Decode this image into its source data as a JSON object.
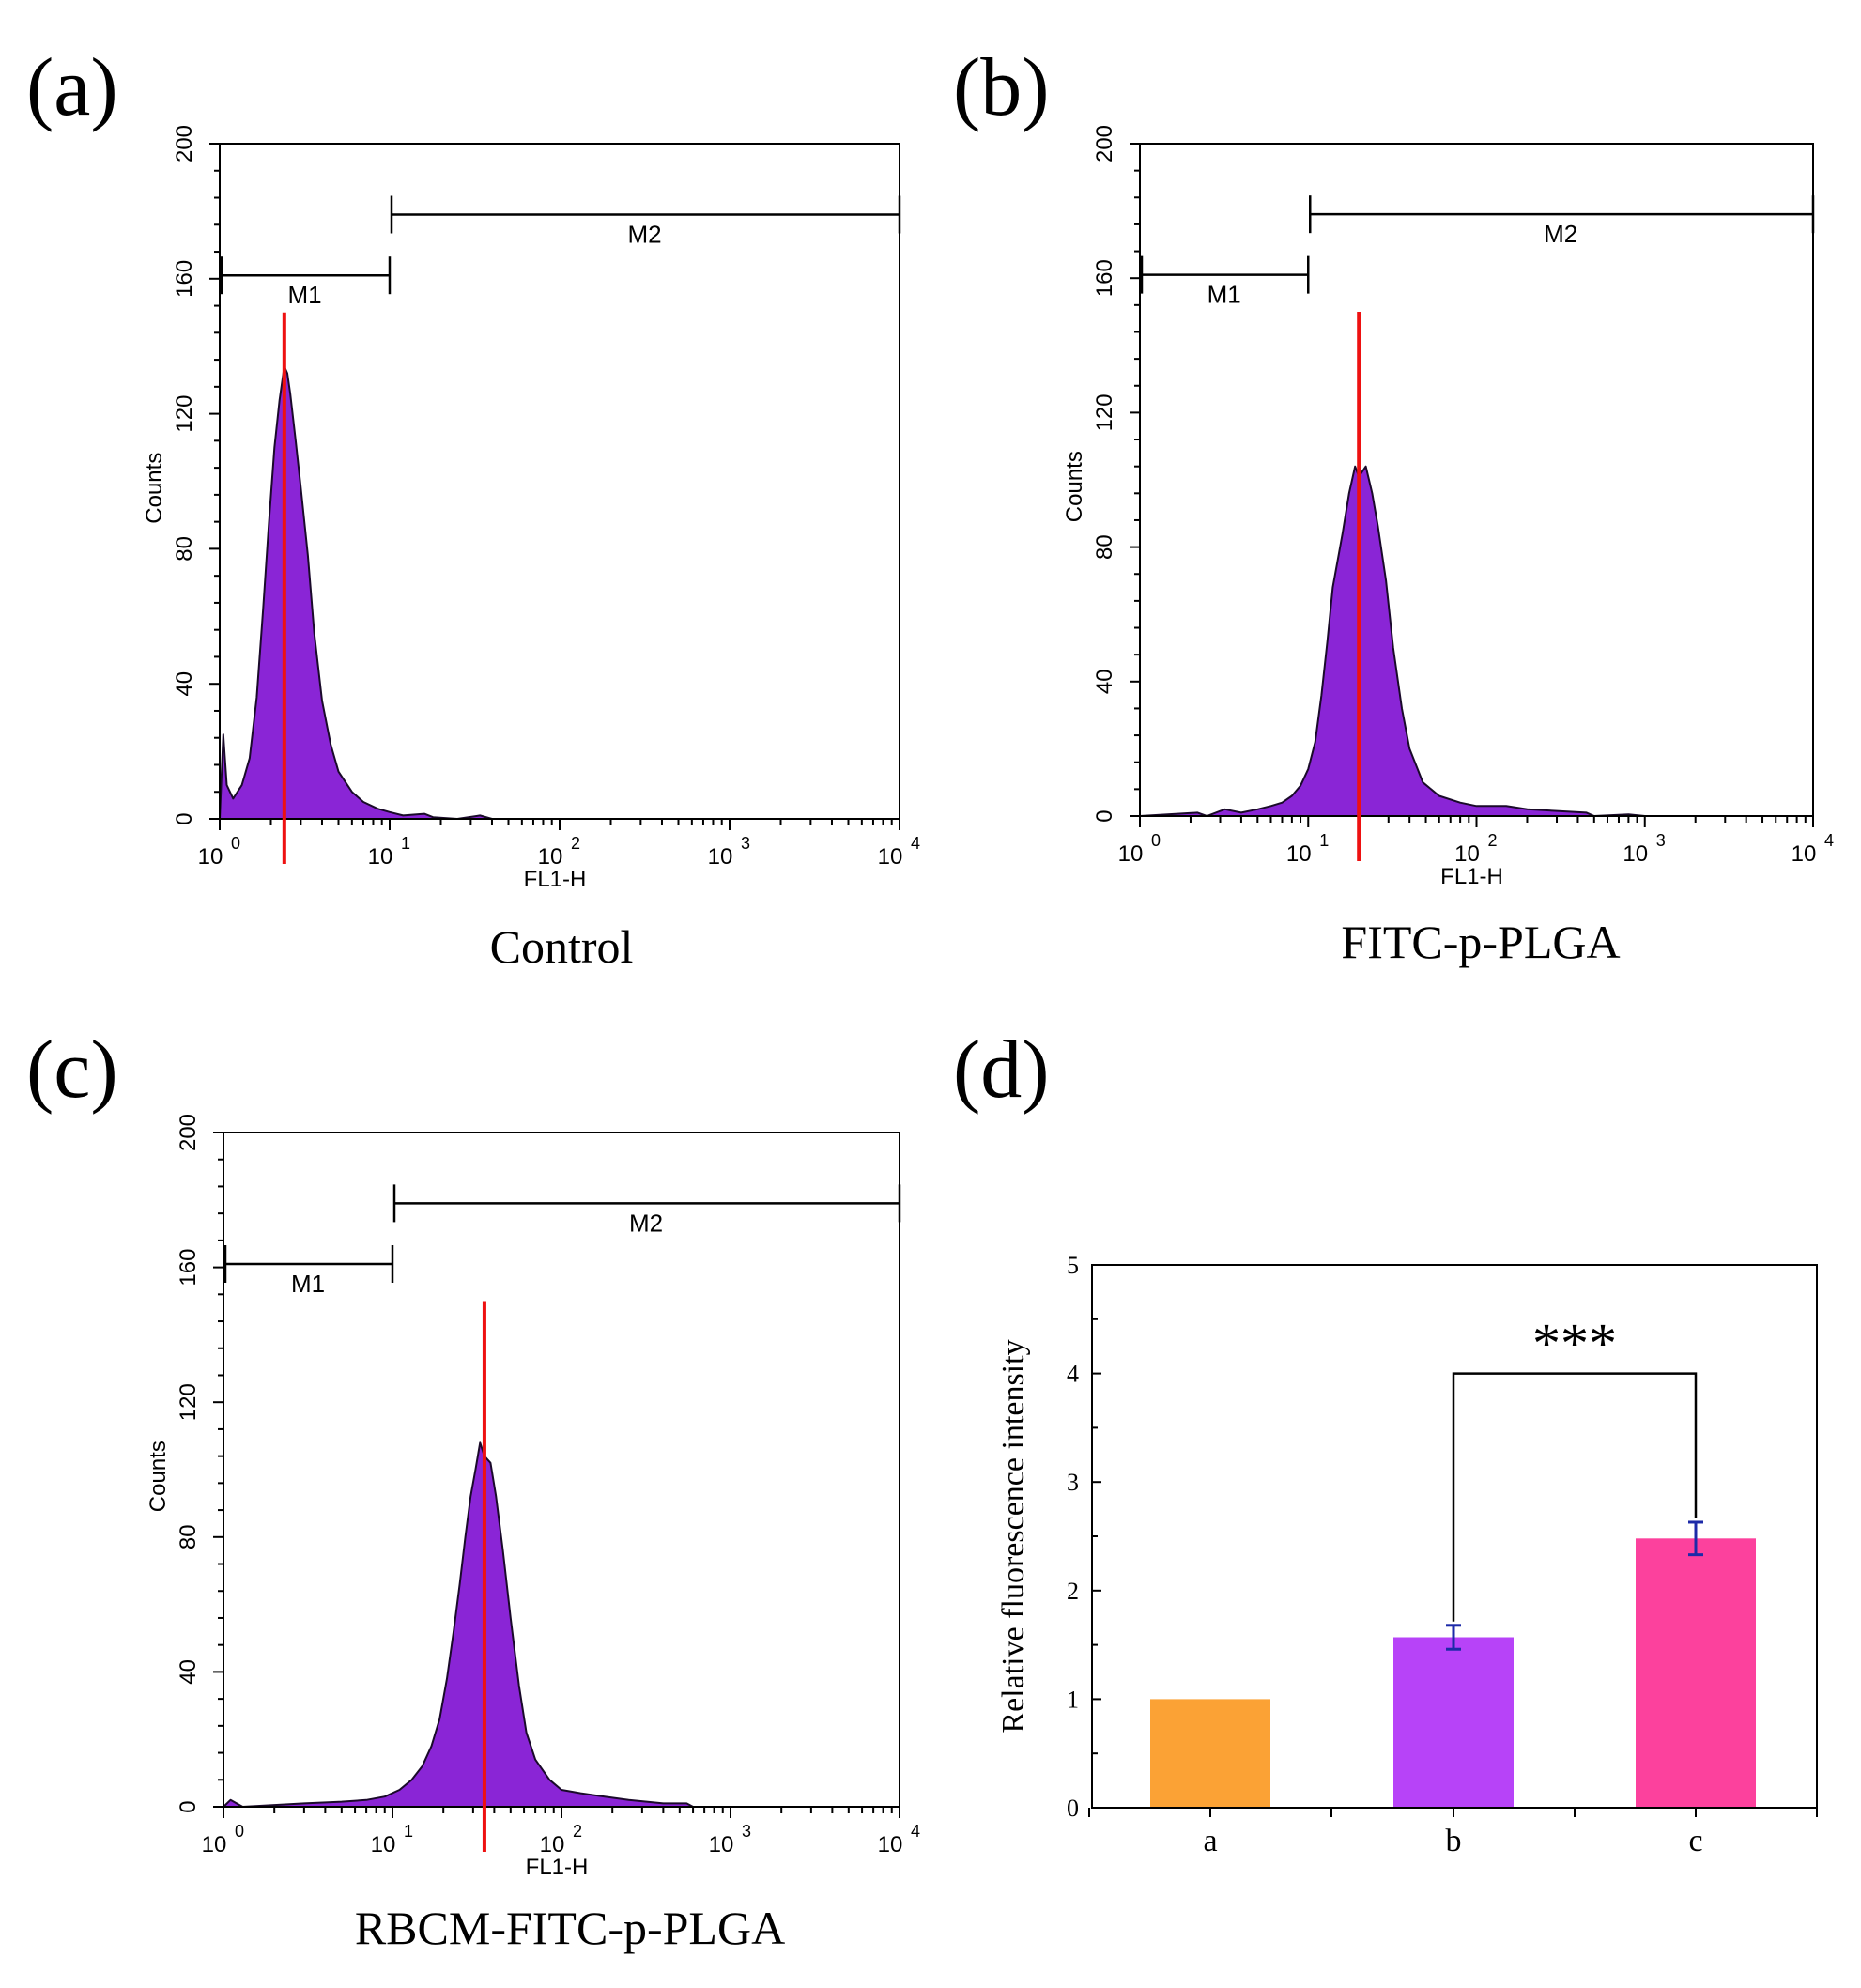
{
  "colors": {
    "histogram_fill": "#8a25d6",
    "histogram_outline": "#1a0a2a",
    "marker_line": "#ee1111",
    "bar_a": "#fba235",
    "bar_b": "#b743f8",
    "bar_c": "#fc419d",
    "error_bar": "#1c2aa8"
  },
  "chart_data": [
    {
      "panel": "(a)",
      "type": "area",
      "caption": "Control",
      "xlabel": "FL1-H",
      "ylabel": "Counts",
      "x_scale": "log",
      "xlim": [
        1,
        10000
      ],
      "ylim": [
        0,
        200
      ],
      "x_ticks": [
        {
          "base": "10",
          "exp": "0"
        },
        {
          "base": "10",
          "exp": "1"
        },
        {
          "base": "10",
          "exp": "2"
        },
        {
          "base": "10",
          "exp": "3"
        },
        {
          "base": "10",
          "exp": "4"
        }
      ],
      "y_ticks": [
        "0",
        "40",
        "80",
        "120",
        "160",
        "200"
      ],
      "markers": [
        {
          "label": "M1",
          "x_start": 1,
          "x_end": 10,
          "y": 161
        },
        {
          "label": "M2",
          "x_start": 10,
          "x_end": 10000,
          "y": 179
        }
      ],
      "peak_marker_x": 2.4,
      "histogram": [
        [
          1,
          0
        ],
        [
          1.05,
          25
        ],
        [
          1.1,
          10
        ],
        [
          1.2,
          6
        ],
        [
          1.35,
          10
        ],
        [
          1.5,
          18
        ],
        [
          1.65,
          36
        ],
        [
          1.8,
          62
        ],
        [
          1.95,
          88
        ],
        [
          2.1,
          110
        ],
        [
          2.25,
          124
        ],
        [
          2.4,
          134
        ],
        [
          2.5,
          132
        ],
        [
          2.6,
          126
        ],
        [
          2.8,
          112
        ],
        [
          3.0,
          98
        ],
        [
          3.3,
          78
        ],
        [
          3.6,
          55
        ],
        [
          4.0,
          35
        ],
        [
          4.5,
          22
        ],
        [
          5.0,
          14
        ],
        [
          6.0,
          8
        ],
        [
          7.0,
          5
        ],
        [
          8.5,
          3
        ],
        [
          10.0,
          2
        ],
        [
          12,
          1
        ],
        [
          16,
          1.5
        ],
        [
          18,
          0.5
        ],
        [
          25,
          0
        ],
        [
          34,
          1
        ],
        [
          40,
          0
        ],
        [
          10000,
          0
        ]
      ]
    },
    {
      "panel": "(b)",
      "type": "area",
      "caption": "FITC-p-PLGA",
      "xlabel": "FL1-H",
      "ylabel": "Counts",
      "x_scale": "log",
      "xlim": [
        1,
        10000
      ],
      "ylim": [
        0,
        200
      ],
      "x_ticks": [
        {
          "base": "10",
          "exp": "0"
        },
        {
          "base": "10",
          "exp": "1"
        },
        {
          "base": "10",
          "exp": "2"
        },
        {
          "base": "10",
          "exp": "3"
        },
        {
          "base": "10",
          "exp": "4"
        }
      ],
      "y_ticks": [
        "0",
        "40",
        "80",
        "120",
        "160",
        "200"
      ],
      "markers": [
        {
          "label": "M1",
          "x_start": 1,
          "x_end": 10,
          "y": 161
        },
        {
          "label": "M2",
          "x_start": 10,
          "x_end": 10000,
          "y": 179
        }
      ],
      "peak_marker_x": 20,
      "histogram": [
        [
          1,
          0
        ],
        [
          2.2,
          1
        ],
        [
          2.5,
          0
        ],
        [
          3.2,
          2
        ],
        [
          4,
          1
        ],
        [
          5,
          2
        ],
        [
          6,
          3
        ],
        [
          7,
          4
        ],
        [
          8,
          6
        ],
        [
          9,
          9
        ],
        [
          10,
          14
        ],
        [
          11,
          22
        ],
        [
          12,
          36
        ],
        [
          13,
          52
        ],
        [
          14,
          68
        ],
        [
          16,
          84
        ],
        [
          17.5,
          96
        ],
        [
          19,
          104
        ],
        [
          20,
          101
        ],
        [
          22,
          104
        ],
        [
          24,
          96
        ],
        [
          26,
          86
        ],
        [
          29,
          70
        ],
        [
          32,
          50
        ],
        [
          36,
          32
        ],
        [
          40,
          20
        ],
        [
          48,
          10
        ],
        [
          60,
          6
        ],
        [
          80,
          4
        ],
        [
          100,
          3
        ],
        [
          150,
          3
        ],
        [
          200,
          2
        ],
        [
          300,
          1.5
        ],
        [
          450,
          1
        ],
        [
          500,
          0
        ],
        [
          800,
          0.5
        ],
        [
          1000,
          0
        ],
        [
          10000,
          0
        ]
      ]
    },
    {
      "panel": "(c)",
      "type": "area",
      "caption": "RBCM-FITC-p-PLGA",
      "xlabel": "FL1-H",
      "ylabel": "Counts",
      "x_scale": "log",
      "xlim": [
        1,
        10000
      ],
      "ylim": [
        0,
        200
      ],
      "x_ticks": [
        {
          "base": "10",
          "exp": "0"
        },
        {
          "base": "10",
          "exp": "1"
        },
        {
          "base": "10",
          "exp": "2"
        },
        {
          "base": "10",
          "exp": "3"
        },
        {
          "base": "10",
          "exp": "4"
        }
      ],
      "y_ticks": [
        "0",
        "40",
        "80",
        "120",
        "160",
        "200"
      ],
      "markers": [
        {
          "label": "M1",
          "x_start": 1,
          "x_end": 10,
          "y": 161
        },
        {
          "label": "M2",
          "x_start": 10,
          "x_end": 10000,
          "y": 179
        }
      ],
      "peak_marker_x": 35,
      "histogram": [
        [
          1,
          0
        ],
        [
          1.1,
          2
        ],
        [
          1.3,
          0
        ],
        [
          3,
          1
        ],
        [
          5,
          1.5
        ],
        [
          7,
          2
        ],
        [
          9,
          3
        ],
        [
          11,
          5
        ],
        [
          13,
          8
        ],
        [
          15,
          12
        ],
        [
          17,
          18
        ],
        [
          19,
          26
        ],
        [
          21,
          38
        ],
        [
          23,
          52
        ],
        [
          25,
          66
        ],
        [
          27,
          80
        ],
        [
          29,
          92
        ],
        [
          31,
          100
        ],
        [
          33,
          108
        ],
        [
          35,
          104
        ],
        [
          38,
          102
        ],
        [
          41,
          92
        ],
        [
          45,
          76
        ],
        [
          50,
          56
        ],
        [
          56,
          36
        ],
        [
          62,
          22
        ],
        [
          70,
          14
        ],
        [
          85,
          8
        ],
        [
          100,
          5
        ],
        [
          130,
          4
        ],
        [
          180,
          3
        ],
        [
          250,
          2
        ],
        [
          400,
          1
        ],
        [
          550,
          1
        ],
        [
          600,
          0
        ],
        [
          10000,
          0
        ]
      ]
    },
    {
      "panel": "(d)",
      "type": "bar",
      "categories": [
        "a",
        "b",
        "c"
      ],
      "values": [
        1.0,
        1.57,
        2.48
      ],
      "errors": [
        0,
        0.11,
        0.15
      ],
      "ylabel": "Relative fluorescence intensity",
      "xlabel": "",
      "ylim": [
        0,
        5
      ],
      "y_ticks": [
        "0",
        "1",
        "2",
        "3",
        "4",
        "5"
      ],
      "significance": {
        "between": [
          "b",
          "c"
        ],
        "label": "***",
        "bracket_y": 4.0
      }
    }
  ]
}
